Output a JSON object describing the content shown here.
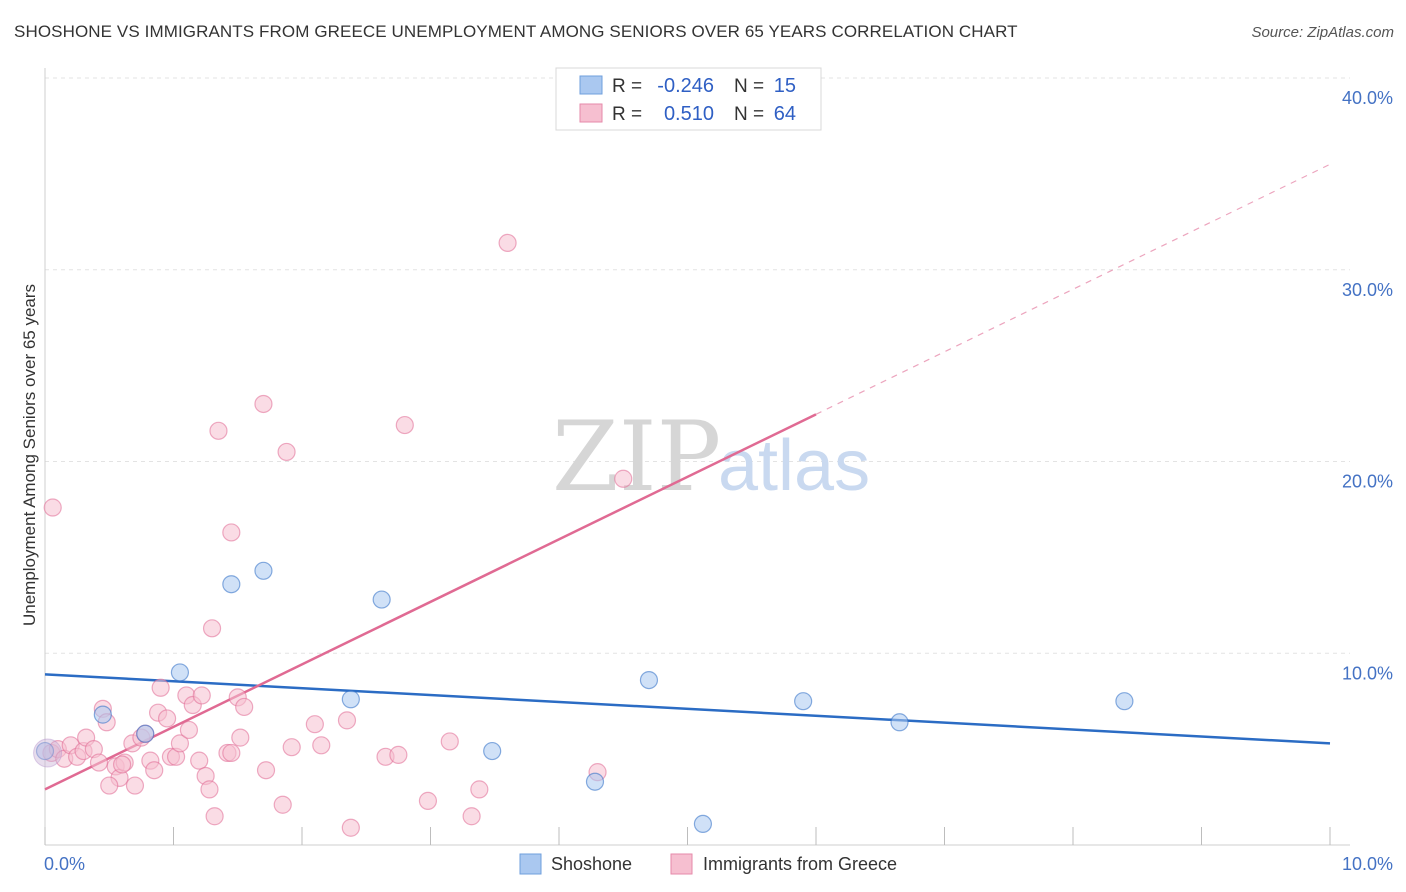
{
  "title": "SHOSHONE VS IMMIGRANTS FROM GREECE UNEMPLOYMENT AMONG SENIORS OVER 65 YEARS CORRELATION CHART",
  "source": "Source: ZipAtlas.com",
  "watermark": {
    "zip": "ZIP",
    "atlas": "atlas"
  },
  "colors": {
    "blue": "#2b6cc4",
    "pink": "#e06a93",
    "blue_fill": "#aac8f0",
    "pink_fill": "#f6bfd0"
  },
  "legend": {
    "rows": [
      {
        "r_label": "R =",
        "r_value": "-0.246",
        "n_label": "N =",
        "n_value": "15"
      },
      {
        "r_label": "R =",
        "r_value": "0.510",
        "n_label": "N =",
        "n_value": "64"
      }
    ]
  },
  "chart_data": {
    "type": "scatter",
    "title": "SHOSHONE VS IMMIGRANTS FROM GREECE UNEMPLOYMENT AMONG SENIORS OVER 65 YEARS CORRELATION CHART",
    "xlabel": "",
    "ylabel": "Unemployment Among Seniors over 65 years",
    "xlim": [
      0,
      10
    ],
    "ylim": [
      0,
      40
    ],
    "x_tick_labels": [
      "0.0%",
      "10.0%"
    ],
    "y_tick_labels": [
      "10.0%",
      "20.0%",
      "30.0%",
      "40.0%"
    ],
    "y_ticks": [
      10,
      20,
      30,
      40
    ],
    "series": [
      {
        "name": "Shoshone",
        "color": "#2b6cc4",
        "fill": "#aac8f0",
        "points": [
          [
            0.0,
            4.9
          ],
          [
            0.45,
            6.8
          ],
          [
            0.78,
            5.8
          ],
          [
            1.05,
            9.0
          ],
          [
            1.45,
            13.6
          ],
          [
            1.7,
            14.3
          ],
          [
            2.38,
            7.6
          ],
          [
            2.62,
            12.8
          ],
          [
            3.48,
            4.9
          ],
          [
            4.28,
            3.3
          ],
          [
            4.7,
            8.6
          ],
          [
            5.12,
            1.1
          ],
          [
            5.9,
            7.5
          ],
          [
            6.65,
            6.4
          ],
          [
            8.4,
            7.5
          ]
        ],
        "trend": {
          "x0": 0,
          "y0": 8.9,
          "x1": 10,
          "y1": 5.3,
          "dashed_from": null
        }
      },
      {
        "name": "Immigrants from Greece",
        "color": "#e06a93",
        "fill": "#f6bfd0",
        "points": [
          [
            0.05,
            4.8
          ],
          [
            0.1,
            5.0
          ],
          [
            0.15,
            4.5
          ],
          [
            0.2,
            5.2
          ],
          [
            0.25,
            4.6
          ],
          [
            0.3,
            4.9
          ],
          [
            0.32,
            5.6
          ],
          [
            0.38,
            5.0
          ],
          [
            0.42,
            4.3
          ],
          [
            0.45,
            7.1
          ],
          [
            0.48,
            6.4
          ],
          [
            0.55,
            4.1
          ],
          [
            0.58,
            3.5
          ],
          [
            0.62,
            4.3
          ],
          [
            0.68,
            5.3
          ],
          [
            0.7,
            3.1
          ],
          [
            0.75,
            5.6
          ],
          [
            0.78,
            5.8
          ],
          [
            0.82,
            4.4
          ],
          [
            0.85,
            3.9
          ],
          [
            0.88,
            6.9
          ],
          [
            0.9,
            8.2
          ],
          [
            0.95,
            6.6
          ],
          [
            0.98,
            4.6
          ],
          [
            1.02,
            4.6
          ],
          [
            1.05,
            5.3
          ],
          [
            1.1,
            7.8
          ],
          [
            1.12,
            6.0
          ],
          [
            1.15,
            7.3
          ],
          [
            1.2,
            4.4
          ],
          [
            1.22,
            7.8
          ],
          [
            1.25,
            3.6
          ],
          [
            1.28,
            2.9
          ],
          [
            1.3,
            11.3
          ],
          [
            1.32,
            1.5
          ],
          [
            1.35,
            21.6
          ],
          [
            1.42,
            4.8
          ],
          [
            1.45,
            16.3
          ],
          [
            1.5,
            7.7
          ],
          [
            1.52,
            5.6
          ],
          [
            1.55,
            7.2
          ],
          [
            1.7,
            23.0
          ],
          [
            1.72,
            3.9
          ],
          [
            1.85,
            2.1
          ],
          [
            1.88,
            20.5
          ],
          [
            1.92,
            5.1
          ],
          [
            2.1,
            6.3
          ],
          [
            2.15,
            5.2
          ],
          [
            2.35,
            6.5
          ],
          [
            2.38,
            0.9
          ],
          [
            2.65,
            4.6
          ],
          [
            2.75,
            4.7
          ],
          [
            2.8,
            21.9
          ],
          [
            2.98,
            2.3
          ],
          [
            3.15,
            5.4
          ],
          [
            3.32,
            1.5
          ],
          [
            3.38,
            2.9
          ],
          [
            3.6,
            31.4
          ],
          [
            4.5,
            19.1
          ],
          [
            4.3,
            3.8
          ],
          [
            0.06,
            17.6
          ],
          [
            0.5,
            3.1
          ],
          [
            1.45,
            4.8
          ],
          [
            0.6,
            4.2
          ]
        ],
        "trend": {
          "x0": 0,
          "y0": 2.9,
          "x1": 10,
          "y1": 35.5,
          "solid_until_x": 6.0
        }
      }
    ],
    "legend_position": "top-center"
  },
  "bottom_legend": [
    {
      "label": "Shoshone"
    },
    {
      "label": "Immigrants from Greece"
    }
  ]
}
